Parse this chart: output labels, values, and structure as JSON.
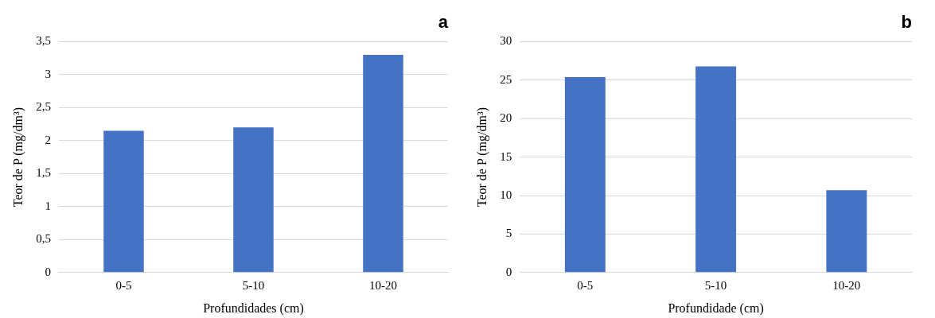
{
  "chart_data": [
    {
      "type": "bar",
      "title": "a",
      "categories": [
        "0-5",
        "5-10",
        "10-20"
      ],
      "values": [
        2.15,
        2.2,
        3.3
      ],
      "color": "#4472c4",
      "xlabel": "Profundidades (cm)",
      "ylabel": "Teor de P (mg/dm³)",
      "ylim": [
        0,
        3.5
      ],
      "yticks": [
        0,
        {
          "value": 0.5,
          "label": "0,5"
        },
        1,
        {
          "value": 1.5,
          "label": "1,5"
        },
        2,
        {
          "value": 2.5,
          "label": "2,5"
        },
        3,
        {
          "value": 3.5,
          "label": "3,5"
        }
      ],
      "grid": "y",
      "legend": false
    },
    {
      "type": "bar",
      "title": "b",
      "categories": [
        "0-5",
        "5-10",
        "10-20"
      ],
      "values": [
        25.4,
        26.8,
        10.7
      ],
      "color": "#4472c4",
      "xlabel": "Profundidade (cm)",
      "ylabel": "Teor de P (mg/dm³)",
      "ylim": [
        0,
        30
      ],
      "yticks": [
        0,
        5,
        10,
        15,
        20,
        25,
        30
      ],
      "grid": "y",
      "legend": false
    }
  ]
}
